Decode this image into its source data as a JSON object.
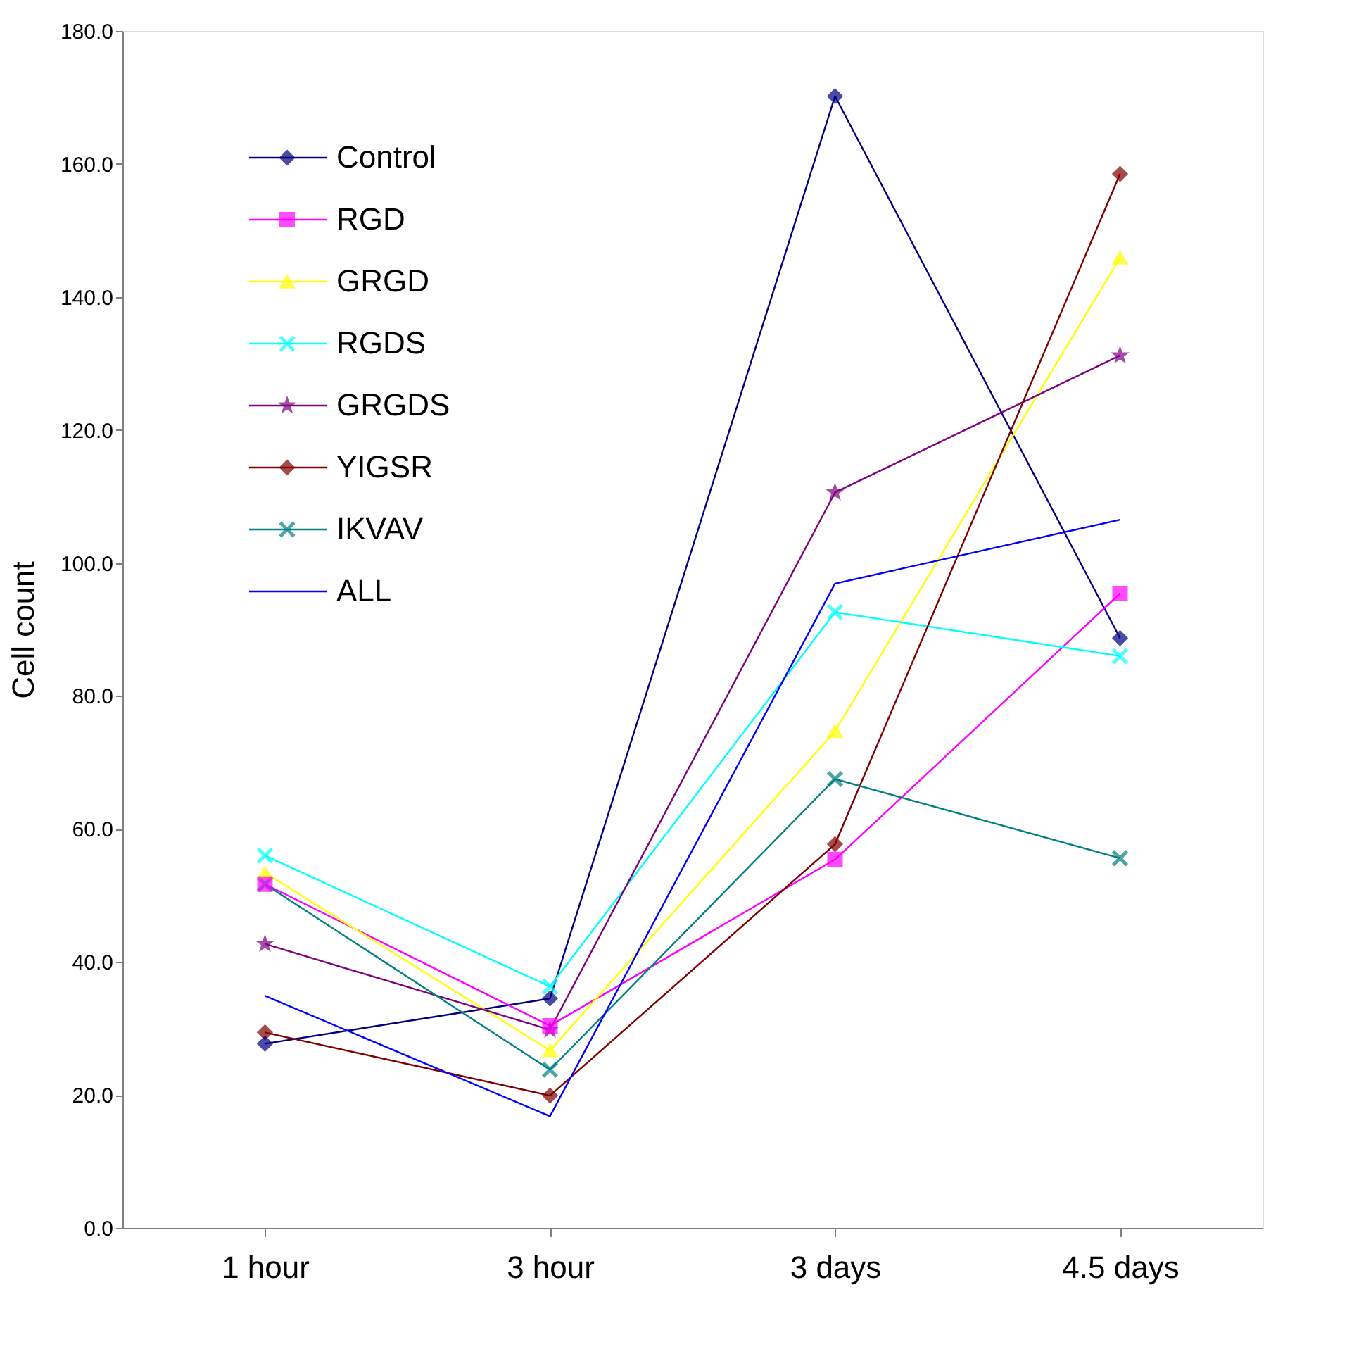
{
  "chart_data": {
    "type": "line",
    "ylabel": "Cell count",
    "categories": [
      "1 hour",
      "3 hour",
      "3 days",
      "4.5 days"
    ],
    "ylim": [
      0,
      180
    ],
    "yticks": [
      {
        "value": 0,
        "label": "0.0"
      },
      {
        "value": 20,
        "label": "20.0"
      },
      {
        "value": 40,
        "label": "40.0"
      },
      {
        "value": 60,
        "label": "60.0"
      },
      {
        "value": 80,
        "label": "80.0"
      },
      {
        "value": 100,
        "label": "100.0"
      },
      {
        "value": 120,
        "label": "120.0"
      },
      {
        "value": 140,
        "label": "140.0"
      },
      {
        "value": 160,
        "label": "160.0"
      },
      {
        "value": 180,
        "label": "180.0"
      }
    ],
    "grid": false,
    "legend": "top left",
    "series": [
      {
        "name": "Control",
        "color": "#000080",
        "marker": "diamond",
        "values": [
          27.7,
          34.5,
          170.2,
          88.7
        ]
      },
      {
        "name": "RGD",
        "color": "#ff00ff",
        "marker": "square",
        "values": [
          51.7,
          30.4,
          55.4,
          95.4
        ]
      },
      {
        "name": "GRGD",
        "color": "#ffff00",
        "marker": "triangle",
        "values": [
          53.4,
          26.7,
          74.7,
          145.9
        ]
      },
      {
        "name": "RGDS",
        "color": "#00ffff",
        "marker": "cross",
        "values": [
          56.0,
          36.3,
          92.6,
          86.0
        ]
      },
      {
        "name": "GRGDS",
        "color": "#800080",
        "marker": "star",
        "values": [
          42.7,
          29.8,
          110.6,
          131.2
        ]
      },
      {
        "name": "YIGSR",
        "color": "#800000",
        "marker": "diamond",
        "values": [
          29.4,
          19.9,
          57.7,
          158.5
        ]
      },
      {
        "name": "IKVAV",
        "color": "#008080",
        "marker": "cross",
        "values": [
          51.7,
          23.8,
          67.5,
          55.6
        ]
      },
      {
        "name": "ALL",
        "color": "#0000ff",
        "marker": "none",
        "values": [
          34.9,
          16.8,
          96.9,
          106.5
        ]
      }
    ]
  }
}
